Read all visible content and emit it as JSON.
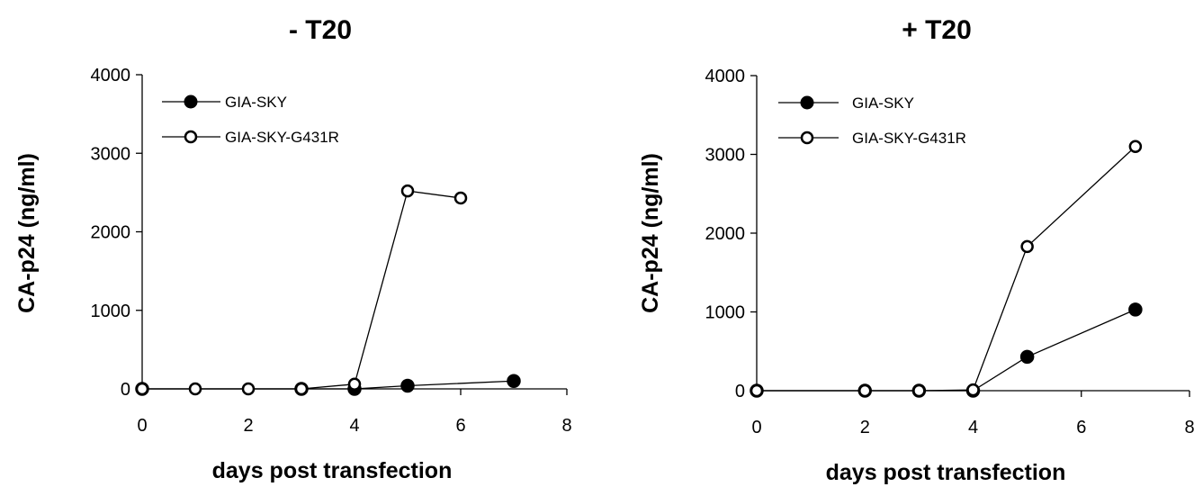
{
  "chart_data": [
    {
      "type": "line",
      "title": "- T20",
      "xlabel": "days post transfection",
      "ylabel": "CA-p24 (ng/ml)",
      "xlim": [
        0,
        8
      ],
      "ylim": [
        0,
        4000
      ],
      "x_ticks": [
        "0",
        "2",
        "4",
        "6",
        "8"
      ],
      "y_ticks": [
        "0",
        "1000",
        "2000",
        "3000",
        "4000"
      ],
      "grid": false,
      "legend_position": "top-left",
      "series": [
        {
          "name": "GIA-SKY",
          "marker": "filled-circle",
          "color": "#000000",
          "x": [
            0,
            3,
            4,
            5,
            7
          ],
          "y": [
            0,
            0,
            0,
            40,
            100
          ]
        },
        {
          "name": "GIA-SKY-G431R",
          "marker": "open-circle",
          "color": "#000000",
          "x": [
            0,
            1,
            2,
            3,
            4,
            5,
            6
          ],
          "y": [
            0,
            0,
            0,
            0,
            60,
            2520,
            2430
          ]
        }
      ]
    },
    {
      "type": "line",
      "title": "+ T20",
      "xlabel": "days post transfection",
      "ylabel": "CA-p24 (ng/ml)",
      "xlim": [
        0,
        8
      ],
      "ylim": [
        0,
        4000
      ],
      "x_ticks": [
        "0",
        "2",
        "4",
        "6",
        "8"
      ],
      "y_ticks": [
        "0",
        "1000",
        "2000",
        "3000",
        "4000"
      ],
      "grid": false,
      "legend_position": "top-left",
      "series": [
        {
          "name": "GIA-SKY",
          "marker": "filled-circle",
          "color": "#000000",
          "x": [
            0,
            2,
            3,
            4,
            5,
            7
          ],
          "y": [
            0,
            0,
            0,
            0,
            430,
            1030
          ]
        },
        {
          "name": "GIA-SKY-G431R",
          "marker": "open-circle",
          "color": "#000000",
          "x": [
            0,
            2,
            3,
            4,
            5,
            7
          ],
          "y": [
            0,
            0,
            0,
            10,
            1830,
            3100
          ]
        }
      ]
    }
  ]
}
